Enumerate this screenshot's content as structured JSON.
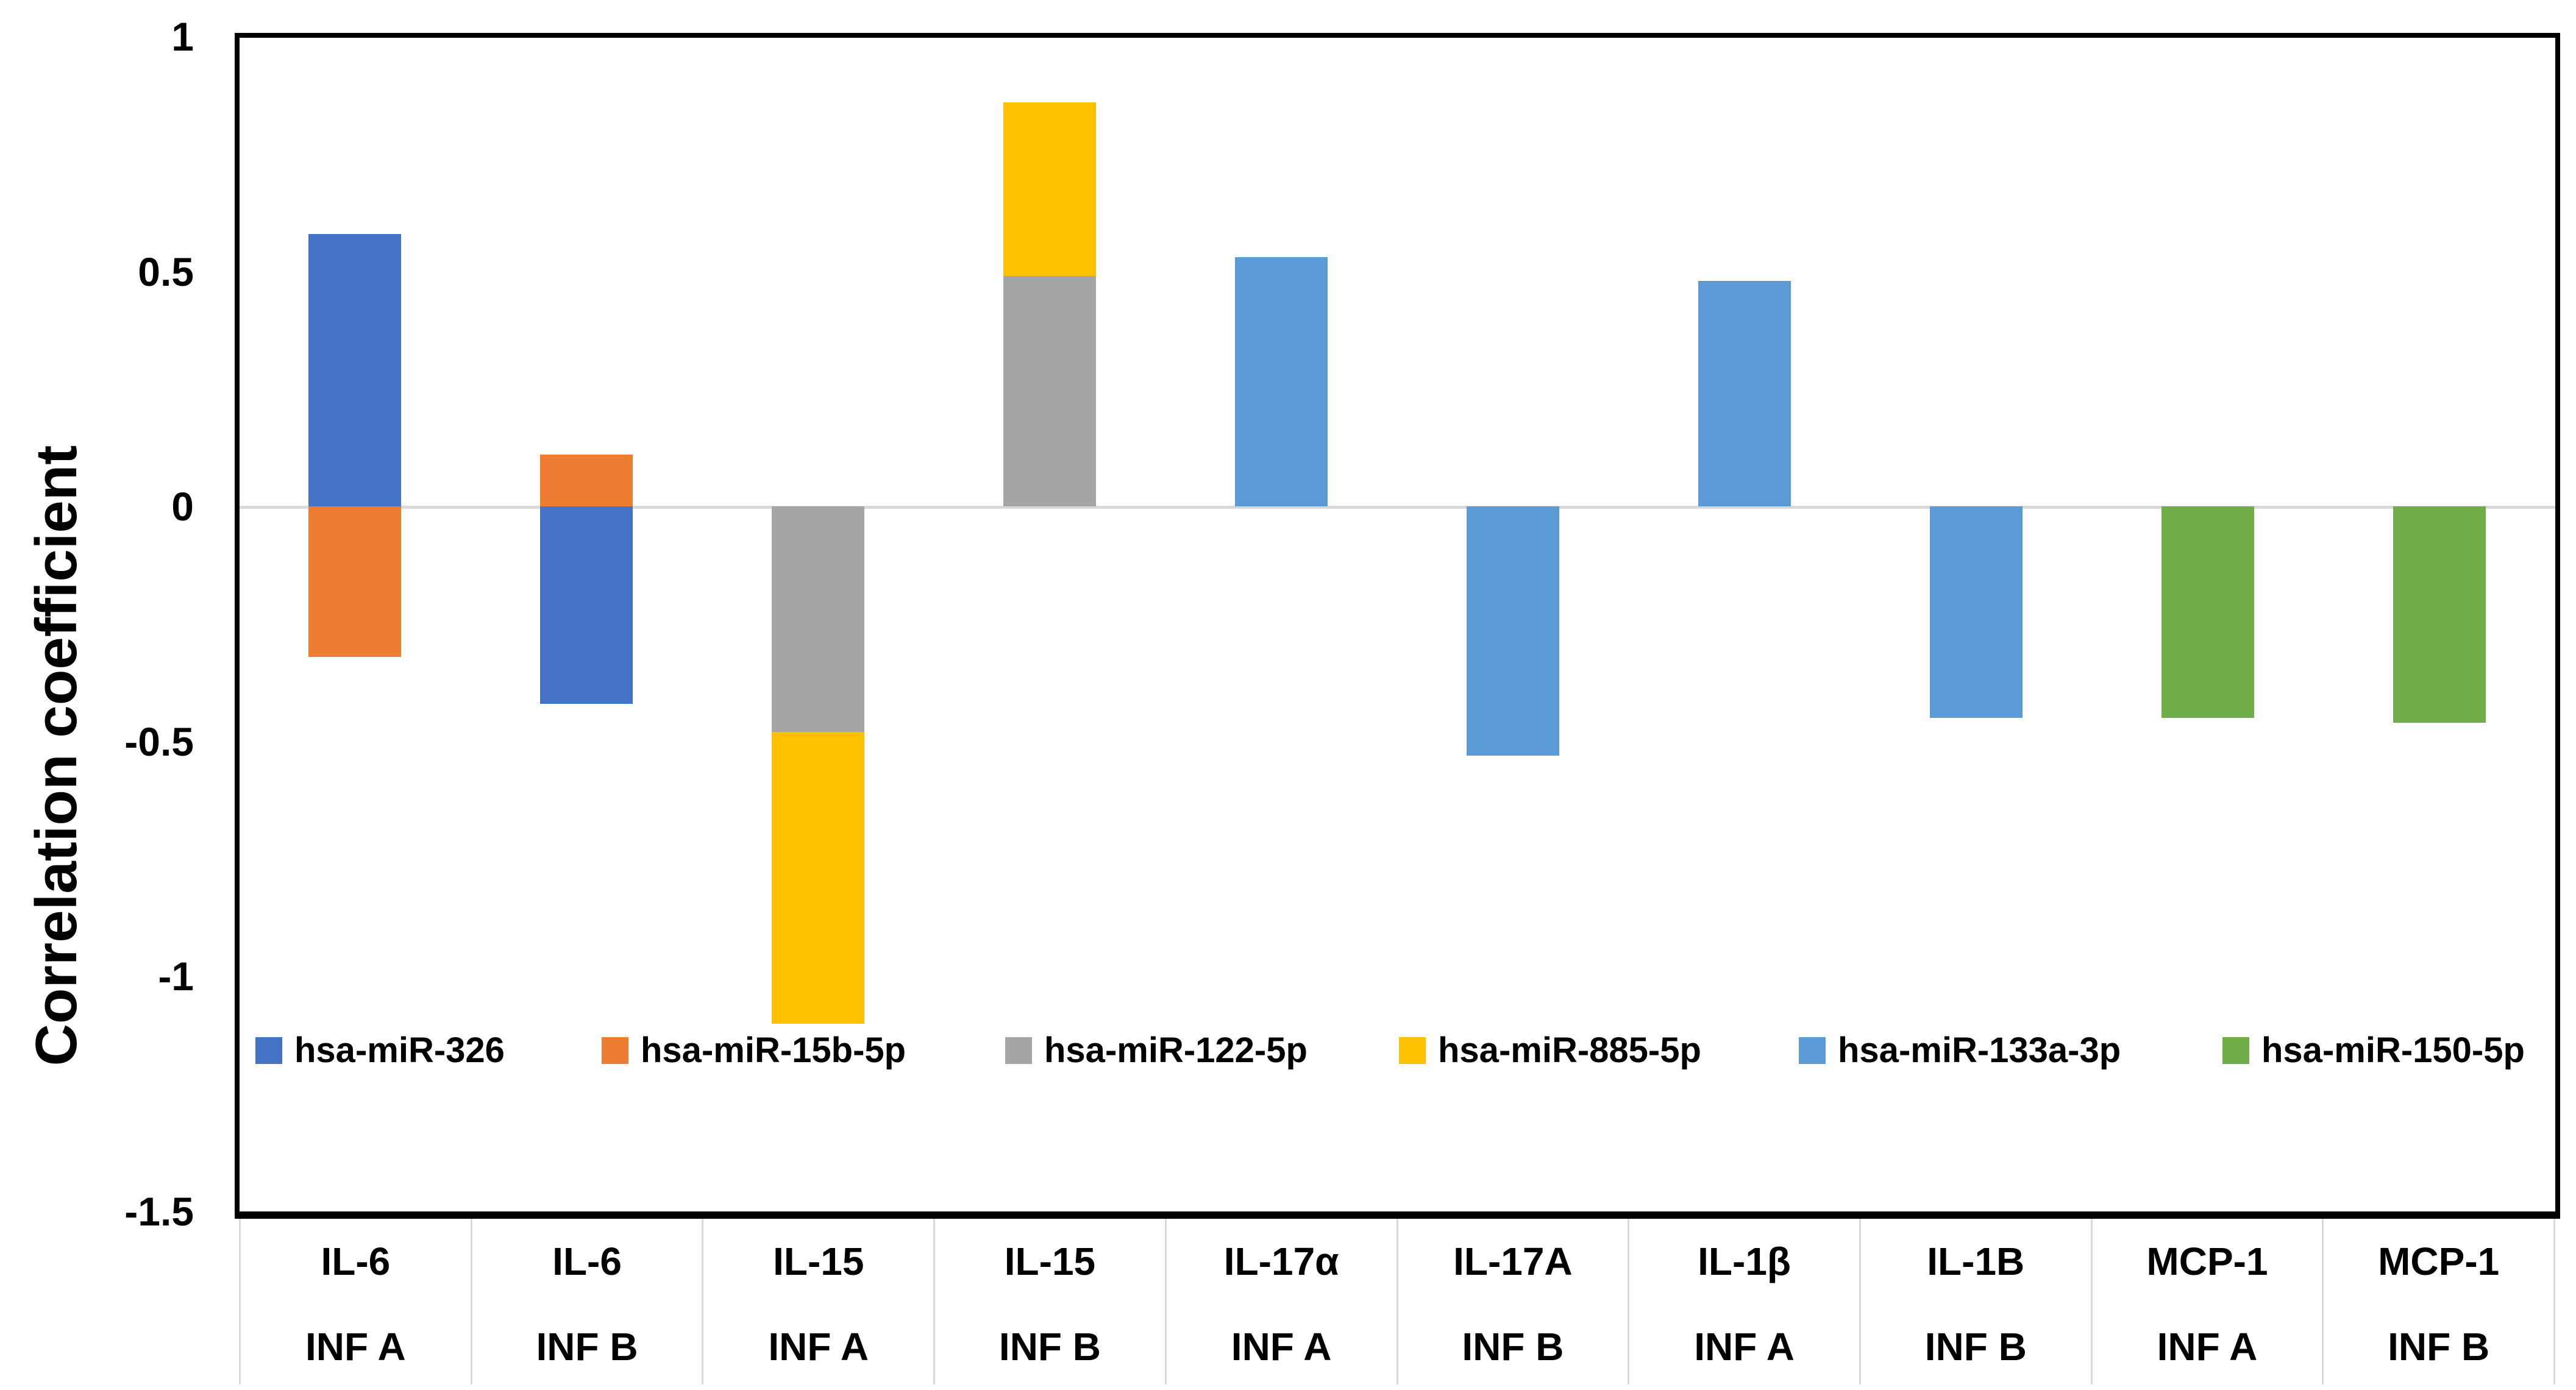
{
  "axis": {
    "y_title": "Correlation coefficient",
    "y_ticks": [
      {
        "label": "1",
        "value": 1
      },
      {
        "label": "0.5",
        "value": 0.5
      },
      {
        "label": "0",
        "value": 0
      },
      {
        "label": "-0.5",
        "value": -0.5
      },
      {
        "label": "-1",
        "value": -1
      },
      {
        "label": "-1.5",
        "value": -1.5
      }
    ]
  },
  "x_axis": {
    "cells": [
      {
        "line1": "IL-6",
        "line2": "INF A"
      },
      {
        "line1": "IL-6",
        "line2": "INF B"
      },
      {
        "line1": "IL-15",
        "line2": "INF A"
      },
      {
        "line1": "IL-15",
        "line2": "INF B"
      },
      {
        "line1": "IL-17α",
        "line2": "INF A"
      },
      {
        "line1": "IL-17A",
        "line2": "INF B"
      },
      {
        "line1": "IL-1β",
        "line2": "INF A"
      },
      {
        "line1": "IL-1B",
        "line2": "INF B"
      },
      {
        "line1": "MCP-1",
        "line2": "INF A"
      },
      {
        "line1": "MCP-1",
        "line2": "INF B"
      }
    ]
  },
  "colors": {
    "grid": "#d9d9d9",
    "axis": "#000000",
    "background": "#ffffff"
  },
  "chart_data": {
    "type": "bar",
    "stacked": true,
    "title": "",
    "xlabel": "",
    "ylabel": "Correlation coefficient",
    "ylim": [
      -1.5,
      1
    ],
    "grid": "zero-line-only",
    "legend_position": "inside-bottom",
    "categories": [
      "IL-6 INF A",
      "IL-6 INF B",
      "IL-15 INF A",
      "IL-15 INF B",
      "IL-17α INF A",
      "IL-17A INF B",
      "IL-1β INF A",
      "IL-1B INF B",
      "MCP-1 INF A",
      "MCP-1 INF B"
    ],
    "series": [
      {
        "name": "hsa-miR-326",
        "color": "#4472C4",
        "values": [
          0.58,
          -0.42,
          null,
          null,
          null,
          null,
          null,
          null,
          null,
          null
        ]
      },
      {
        "name": "hsa-miR-15b-5p",
        "color": "#ED7D31",
        "values": [
          -0.32,
          0.11,
          null,
          null,
          null,
          null,
          null,
          null,
          null,
          null
        ]
      },
      {
        "name": "hsa-miR-122-5p",
        "color": "#A5A5A5",
        "values": [
          null,
          null,
          -0.48,
          0.49,
          null,
          null,
          null,
          null,
          null,
          null
        ]
      },
      {
        "name": "hsa-miR-885-5p",
        "color": "#FFC000",
        "values": [
          null,
          null,
          -0.62,
          0.37,
          null,
          null,
          null,
          null,
          null,
          null
        ]
      },
      {
        "name": "hsa-miR-133a-3p",
        "color": "#5B9BD5",
        "values": [
          null,
          null,
          null,
          null,
          0.53,
          -0.53,
          0.48,
          -0.45,
          null,
          null
        ]
      },
      {
        "name": "hsa-miR-150-5p",
        "color": "#70AD47",
        "values": [
          null,
          null,
          null,
          null,
          null,
          null,
          null,
          null,
          -0.45,
          -0.46
        ]
      }
    ]
  }
}
